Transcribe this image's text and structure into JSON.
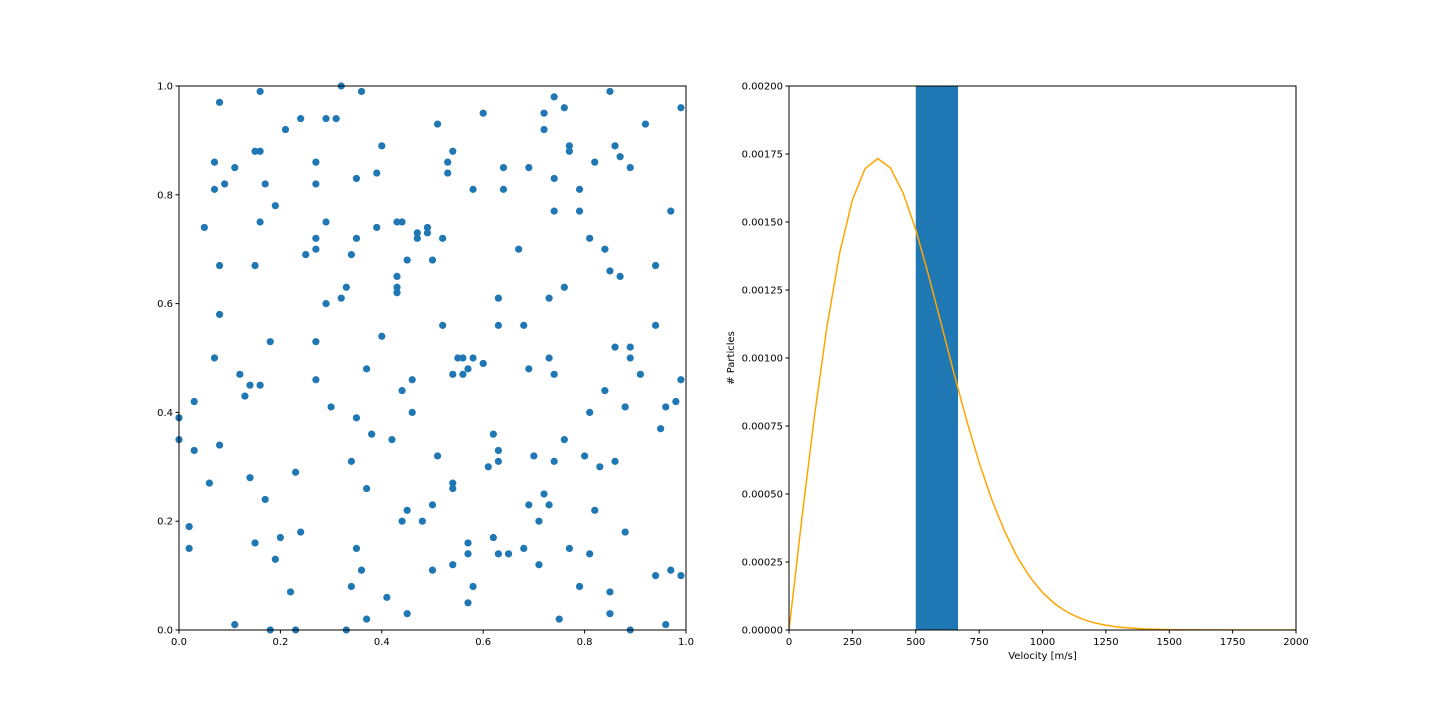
{
  "chart_data": [
    {
      "type": "scatter",
      "color": "#1f77b4",
      "xlim": [
        0,
        1
      ],
      "ylim": [
        0,
        1
      ],
      "xticks": [
        {
          "value": 0,
          "label": "0.0"
        },
        {
          "value": 0.2,
          "label": "0.2"
        },
        {
          "value": 0.4,
          "label": "0.4"
        },
        {
          "value": 0.6,
          "label": "0.6"
        },
        {
          "value": 0.8,
          "label": "0.8"
        },
        {
          "value": 1,
          "label": "1.0"
        }
      ],
      "yticks": [
        {
          "value": 0,
          "label": "0.0"
        },
        {
          "value": 0.2,
          "label": "0.2"
        },
        {
          "value": 0.4,
          "label": "0.4"
        },
        {
          "value": 0.6,
          "label": "0.6"
        },
        {
          "value": 0.8,
          "label": "0.8"
        },
        {
          "value": 1,
          "label": "1.0"
        }
      ],
      "x": [
        0.0,
        0.0,
        0.02,
        0.02,
        0.03,
        0.03,
        0.06,
        0.05,
        0.07,
        0.07,
        0.07,
        0.08,
        0.08,
        0.08,
        0.08,
        0.09,
        0.11,
        0.12,
        0.11,
        0.13,
        0.14,
        0.14,
        0.15,
        0.15,
        0.16,
        0.16,
        0.16,
        0.16,
        0.15,
        0.17,
        0.17,
        0.18,
        0.18,
        0.19,
        0.19,
        0.2,
        0.21,
        0.22,
        0.23,
        0.23,
        0.24,
        0.24,
        0.25,
        0.27,
        0.27,
        0.27,
        0.27,
        0.27,
        0.27,
        0.29,
        0.29,
        0.29,
        0.3,
        0.31,
        0.32,
        0.33,
        0.32,
        0.33,
        0.34,
        0.34,
        0.34,
        0.35,
        0.35,
        0.35,
        0.35,
        0.36,
        0.36,
        0.37,
        0.37,
        0.37,
        0.38,
        0.39,
        0.39,
        0.4,
        0.4,
        0.41,
        0.42,
        0.43,
        0.43,
        0.43,
        0.43,
        0.44,
        0.44,
        0.44,
        0.45,
        0.45,
        0.45,
        0.46,
        0.46,
        0.47,
        0.47,
        0.48,
        0.49,
        0.49,
        0.5,
        0.5,
        0.51,
        0.5,
        0.51,
        0.52,
        0.52,
        0.53,
        0.53,
        0.54,
        0.54,
        0.54,
        0.54,
        0.54,
        0.55,
        0.56,
        0.56,
        0.57,
        0.57,
        0.57,
        0.57,
        0.58,
        0.58,
        0.58,
        0.6,
        0.6,
        0.61,
        0.62,
        0.62,
        0.63,
        0.63,
        0.63,
        0.63,
        0.63,
        0.64,
        0.64,
        0.65,
        0.67,
        0.68,
        0.68,
        0.69,
        0.69,
        0.69,
        0.7,
        0.71,
        0.71,
        0.72,
        0.72,
        0.72,
        0.73,
        0.73,
        0.73,
        0.74,
        0.74,
        0.74,
        0.74,
        0.74,
        0.75,
        0.76,
        0.76,
        0.76,
        0.77,
        0.77,
        0.77,
        0.79,
        0.79,
        0.79,
        0.8,
        0.81,
        0.81,
        0.81,
        0.82,
        0.82,
        0.83,
        0.84,
        0.85,
        0.84,
        0.85,
        0.85,
        0.85,
        0.86,
        0.86,
        0.86,
        0.87,
        0.87,
        0.88,
        0.88,
        0.89,
        0.89,
        0.89,
        0.89,
        0.91,
        0.92,
        0.94,
        0.94,
        0.94,
        0.95,
        0.96,
        0.96,
        0.97,
        0.97,
        0.98,
        0.99,
        0.99,
        0.99
      ],
      "values": [
        0.39,
        0.35,
        0.19,
        0.15,
        0.42,
        0.33,
        0.27,
        0.74,
        0.5,
        0.86,
        0.81,
        0.97,
        0.67,
        0.58,
        0.34,
        0.82,
        0.85,
        0.47,
        0.01,
        0.43,
        0.45,
        0.28,
        0.67,
        0.88,
        0.99,
        0.88,
        0.75,
        0.45,
        0.16,
        0.82,
        0.24,
        0.0,
        0.53,
        0.78,
        0.13,
        0.17,
        0.92,
        0.07,
        0.0,
        0.29,
        0.18,
        0.94,
        0.69,
        0.7,
        0.86,
        0.72,
        0.82,
        0.46,
        0.53,
        0.94,
        0.6,
        0.75,
        0.41,
        0.94,
        0.61,
        0.63,
        1.0,
        0.0,
        0.31,
        0.69,
        0.08,
        0.72,
        0.39,
        0.83,
        0.15,
        0.99,
        0.11,
        0.26,
        0.48,
        0.02,
        0.36,
        0.84,
        0.74,
        0.54,
        0.89,
        0.06,
        0.35,
        0.63,
        0.62,
        0.75,
        0.65,
        0.75,
        0.44,
        0.2,
        0.68,
        0.22,
        0.03,
        0.46,
        0.4,
        0.73,
        0.72,
        0.2,
        0.73,
        0.74,
        0.23,
        0.68,
        0.93,
        0.11,
        0.32,
        0.72,
        0.56,
        0.84,
        0.86,
        0.47,
        0.12,
        0.26,
        0.27,
        0.88,
        0.5,
        0.5,
        0.47,
        0.48,
        0.14,
        0.16,
        0.05,
        0.08,
        0.5,
        0.81,
        0.95,
        0.49,
        0.3,
        0.36,
        0.17,
        0.56,
        0.61,
        0.14,
        0.31,
        0.33,
        0.81,
        0.85,
        0.14,
        0.7,
        0.15,
        0.56,
        0.48,
        0.23,
        0.85,
        0.32,
        0.2,
        0.12,
        0.25,
        0.92,
        0.95,
        0.23,
        0.61,
        0.5,
        0.47,
        0.98,
        0.83,
        0.77,
        0.31,
        0.02,
        0.96,
        0.35,
        0.63,
        0.88,
        0.15,
        0.89,
        0.08,
        0.81,
        0.77,
        0.32,
        0.72,
        0.4,
        0.14,
        0.22,
        0.86,
        0.3,
        0.44,
        0.99,
        0.7,
        0.66,
        0.07,
        0.03,
        0.52,
        0.31,
        0.89,
        0.87,
        0.65,
        0.18,
        0.41,
        0.0,
        0.85,
        0.52,
        0.5,
        0.47,
        0.93,
        0.56,
        0.1,
        0.67,
        0.37,
        0.41,
        0.01,
        0.11,
        0.77,
        0.42,
        0.1,
        0.46,
        0.96
      ]
    },
    {
      "type": "histogram",
      "x_label": "Velocity [m/s]",
      "y_label": "# Particles",
      "color": "#1f77b4",
      "bins": [
        500,
        666.7
      ],
      "counts": [
        0.002
      ],
      "curve": {
        "color": "orange",
        "x": [
          0,
          50,
          100,
          150,
          200,
          250,
          300,
          350,
          400,
          450,
          500,
          550,
          600,
          650,
          700,
          750,
          800,
          850,
          900,
          950,
          1000,
          1050,
          1100,
          1150,
          1200,
          1250,
          1300,
          1400,
          1500,
          1600,
          1800,
          2000
        ],
        "values": [
          0,
          0.000404,
          0.000784,
          0.001117,
          0.001387,
          0.001581,
          0.001696,
          0.001733,
          0.001699,
          0.001607,
          0.001472,
          0.001306,
          0.001127,
          0.000946,
          0.000773,
          0.000616,
          0.000479,
          0.000364,
          0.000269,
          0.000195,
          0.000138,
          9.52e-05,
          6.43e-05,
          4.25e-05,
          2.74e-05,
          1.73e-05,
          1.07e-05,
          3.8e-06,
          1.3e-06,
          4e-07,
          2e-08,
          0
        ]
      },
      "xlim": [
        0,
        2000
      ],
      "ylim": [
        0,
        0.002
      ],
      "xticks": [
        0,
        250,
        500,
        750,
        1000,
        1250,
        1500,
        1750,
        2000
      ],
      "yticks": [
        {
          "value": 0,
          "label": "0.00000"
        },
        {
          "value": 0.00025,
          "label": "0.00025"
        },
        {
          "value": 0.0005,
          "label": "0.00050"
        },
        {
          "value": 0.00075,
          "label": "0.00075"
        },
        {
          "value": 0.001,
          "label": "0.00100"
        },
        {
          "value": 0.00125,
          "label": "0.00125"
        },
        {
          "value": 0.0015,
          "label": "0.00150"
        },
        {
          "value": 0.00175,
          "label": "0.00175"
        },
        {
          "value": 0.002,
          "label": "0.00200"
        }
      ]
    }
  ]
}
